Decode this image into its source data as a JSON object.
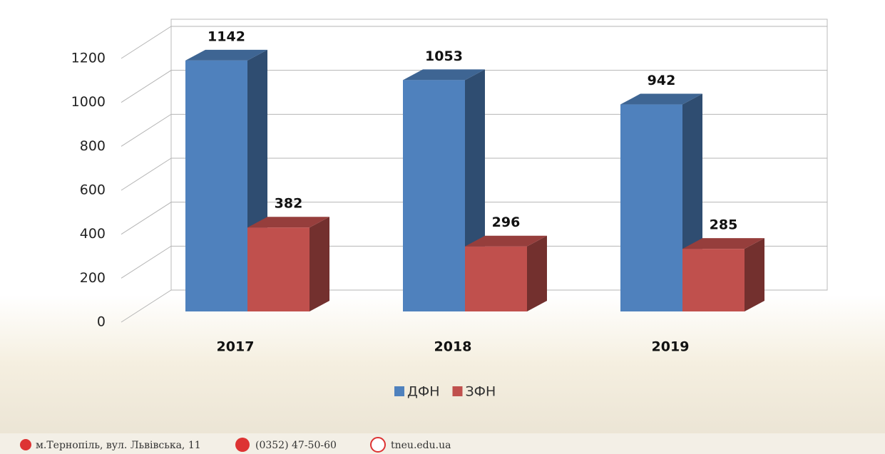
{
  "chart_data": {
    "type": "bar3d",
    "categories": [
      "2017",
      "2018",
      "2019"
    ],
    "series": [
      {
        "name": "ДФН",
        "color": "#4f81bd",
        "values": [
          1142,
          1053,
          942
        ]
      },
      {
        "name": "ЗФН",
        "color": "#c0504d",
        "values": [
          382,
          296,
          285
        ]
      }
    ],
    "ylim": [
      0,
      1200
    ],
    "yticks": [
      0,
      200,
      400,
      600,
      800,
      1000,
      1200
    ],
    "grid": true,
    "legend": "bottom"
  },
  "footer": {
    "address": "м.Тернопіль, вул. Львівська, 11",
    "phone": "(0352) 47-50-60",
    "website": "tneu.edu.ua"
  }
}
